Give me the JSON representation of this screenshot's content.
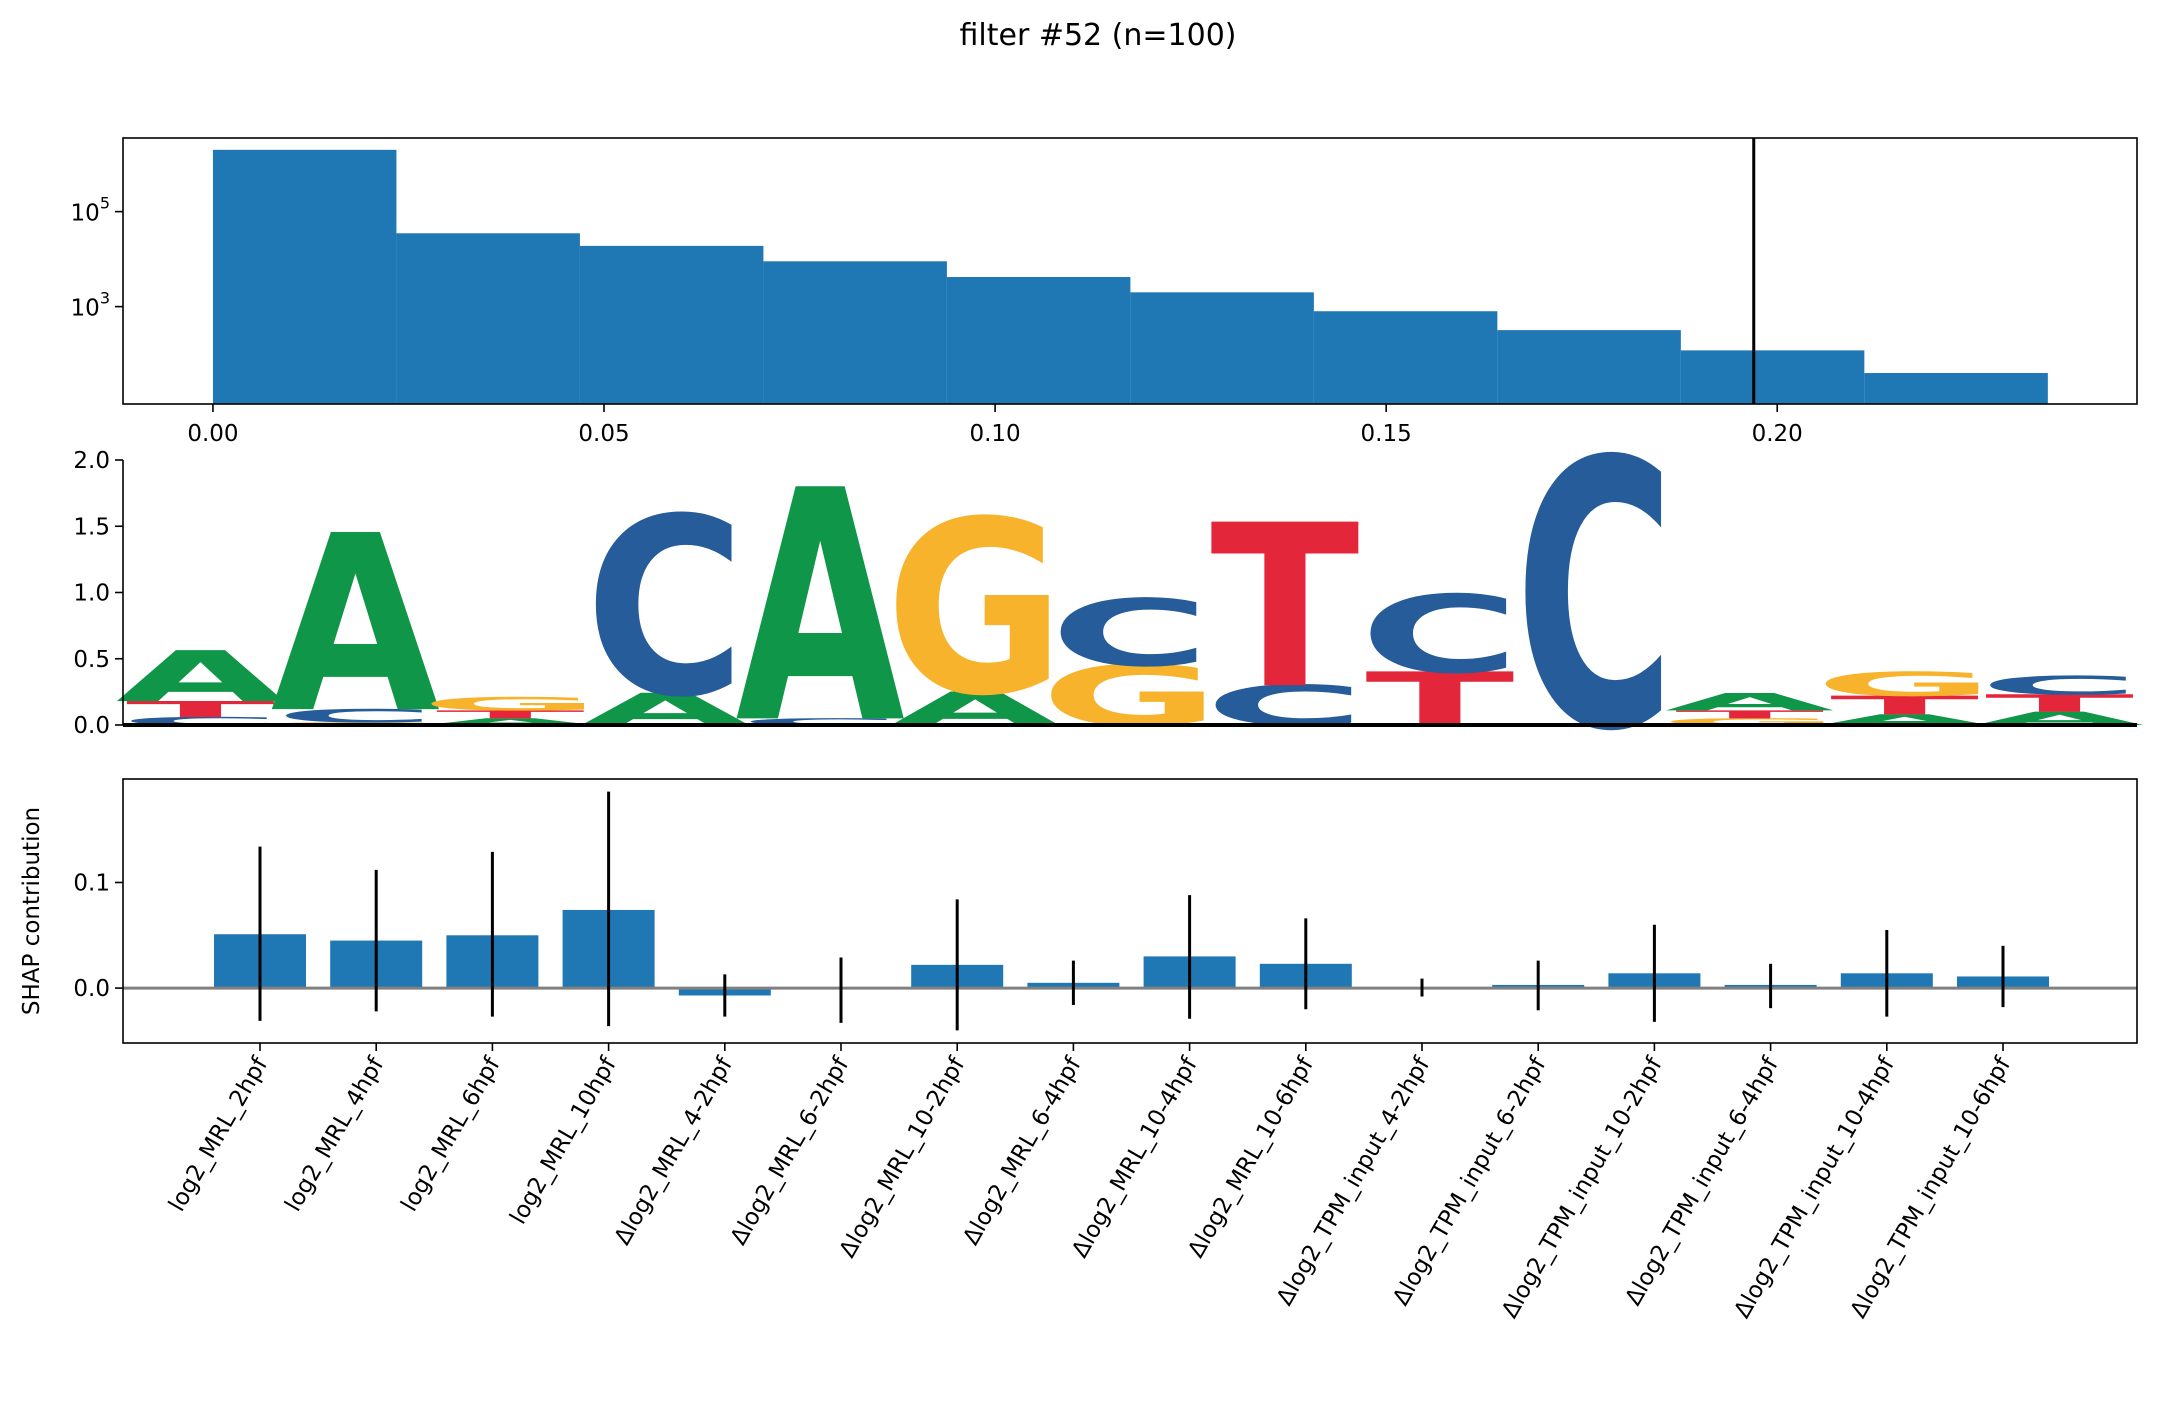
{
  "figure_title": "filter #52 (n=100)",
  "chart_data": [
    {
      "type": "bar",
      "subtype": "histogram",
      "yscale": "log",
      "bins": {
        "edges": [
          0.0,
          0.02346,
          0.04692,
          0.07038,
          0.09384,
          0.1173,
          0.14076,
          0.16422,
          0.18768,
          0.21114,
          0.2346
        ],
        "counts": [
          2000000,
          35000,
          19000,
          9000,
          4200,
          2000,
          800,
          320,
          120,
          40
        ]
      },
      "threshold_line": 0.197,
      "xlim": [
        -0.0115,
        0.246
      ],
      "ylim_log10": [
        0.95,
        6.55
      ],
      "xticks": [
        {
          "value": 0.0,
          "label": "0.00"
        },
        {
          "value": 0.05,
          "label": "0.05"
        },
        {
          "value": 0.1,
          "label": "0.10"
        },
        {
          "value": 0.15,
          "label": "0.15"
        },
        {
          "value": 0.2,
          "label": "0.20"
        }
      ],
      "yticks": [
        {
          "exp": 5,
          "base": "10",
          "sup": "5"
        },
        {
          "exp": 3,
          "base": "10",
          "sup": "3"
        }
      ],
      "xlabel": "",
      "ylabel": "",
      "color": "#1f77b4"
    },
    {
      "type": "sequence_logo",
      "positions": 13,
      "ylim": [
        0,
        2.0
      ],
      "yticks": [
        "0.0",
        "0.5",
        "1.0",
        "1.5",
        "2.0"
      ],
      "colors": {
        "A": "#109648",
        "C": "#255C99",
        "G": "#F7B32B",
        "T": "#E4263B"
      },
      "stacks": [
        [
          [
            "C",
            0.06
          ],
          [
            "T",
            0.12
          ],
          [
            "A",
            0.38
          ]
        ],
        [
          [
            "G",
            0.02
          ],
          [
            "C",
            0.1
          ],
          [
            "A",
            1.32
          ]
        ],
        [
          [
            "A",
            0.05
          ],
          [
            "T",
            0.06
          ],
          [
            "G",
            0.1
          ]
        ],
        [
          [
            "A",
            0.24
          ],
          [
            "C",
            1.33
          ]
        ],
        [
          [
            "C",
            0.05
          ],
          [
            "A",
            1.73
          ]
        ],
        [
          [
            "A",
            0.25
          ],
          [
            "G",
            1.3
          ]
        ],
        [
          [
            "G",
            0.45
          ],
          [
            "C",
            0.5
          ]
        ],
        [
          [
            "C",
            0.3
          ],
          [
            "T",
            1.22
          ]
        ],
        [
          [
            "T",
            0.4
          ],
          [
            "C",
            0.58
          ]
        ],
        [
          [
            "C",
            2.0
          ]
        ],
        [
          [
            "G",
            0.05
          ],
          [
            "T",
            0.06
          ],
          [
            "A",
            0.13
          ]
        ],
        [
          [
            "A",
            0.08
          ],
          [
            "T",
            0.14
          ],
          [
            "G",
            0.18
          ]
        ],
        [
          [
            "A",
            0.1
          ],
          [
            "T",
            0.13
          ],
          [
            "C",
            0.14
          ]
        ]
      ]
    },
    {
      "type": "bar",
      "subtype": "bar_with_errorbars",
      "ylabel": "SHAP contribution",
      "ylim": [
        -0.052,
        0.198
      ],
      "yticks": [
        {
          "value": 0.0,
          "label": "0.0"
        },
        {
          "value": 0.1,
          "label": "0.1"
        }
      ],
      "categories": [
        "log2_MRL_2hpf",
        "log2_MRL_4hpf",
        "log2_MRL_6hpf",
        "log2_MRL_10hpf",
        "Δlog2_MRL_4-2hpf",
        "Δlog2_MRL_6-2hpf",
        "Δlog2_MRL_10-2hpf",
        "Δlog2_MRL_6-4hpf",
        "Δlog2_MRL_10-4hpf",
        "Δlog2_MRL_10-6hpf",
        "Δlog2_TPM_input_4-2hpf",
        "Δlog2_TPM_input_6-2hpf",
        "Δlog2_TPM_input_10-2hpf",
        "Δlog2_TPM_input_6-4hpf",
        "Δlog2_TPM_input_10-4hpf",
        "Δlog2_TPM_input_10-6hpf"
      ],
      "values": [
        0.051,
        0.045,
        0.05,
        0.074,
        -0.007,
        0.0,
        0.022,
        0.005,
        0.03,
        0.023,
        0.0,
        0.003,
        0.014,
        0.003,
        0.014,
        0.011
      ],
      "err_low": [
        -0.031,
        -0.022,
        -0.027,
        -0.036,
        -0.027,
        -0.033,
        -0.04,
        -0.016,
        -0.029,
        -0.02,
        -0.008,
        -0.021,
        -0.032,
        -0.019,
        -0.027,
        -0.018
      ],
      "err_high": [
        0.134,
        0.112,
        0.129,
        0.186,
        0.013,
        0.029,
        0.084,
        0.026,
        0.088,
        0.066,
        0.009,
        0.026,
        0.06,
        0.023,
        0.055,
        0.04
      ],
      "color": "#1f77b4",
      "zero_line_color": "#808080"
    }
  ]
}
